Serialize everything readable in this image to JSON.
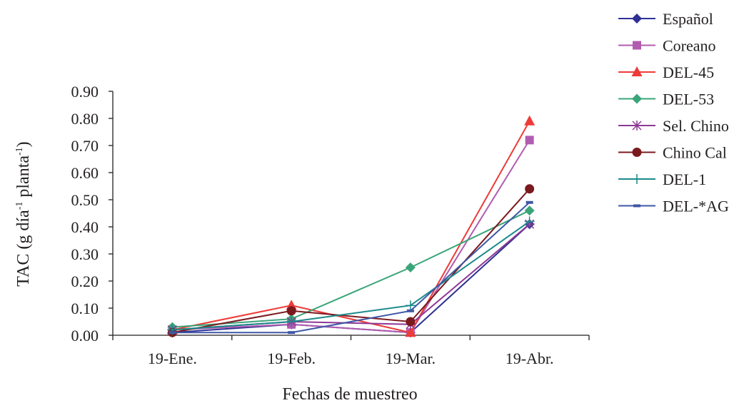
{
  "chart_data": {
    "type": "line",
    "xlabel": "Fechas de muestreo",
    "ylabel_main": "TAC (g día",
    "ylabel_sup1": "-1",
    "ylabel_mid": " planta",
    "ylabel_sup2": "-1",
    "ylabel_close": ")",
    "ylim": [
      0,
      0.9
    ],
    "ytick_labels": [
      "0.00",
      "0.10",
      "0.20",
      "0.30",
      "0.40",
      "0.50",
      "0.60",
      "0.70",
      "0.80",
      "0.90"
    ],
    "categories": [
      "19-Ene.",
      "19-Feb.",
      "19-Mar.",
      "19-Abr."
    ],
    "grid": false,
    "legend_position": "right",
    "series": [
      {
        "name": "Español",
        "color": "#2e3192",
        "marker": "diamond",
        "values": [
          0.01,
          0.04,
          0.01,
          0.41
        ]
      },
      {
        "name": "Coreano",
        "color": "#b15cb0",
        "marker": "square",
        "values": [
          0.02,
          0.04,
          0.01,
          0.72
        ]
      },
      {
        "name": "DEL-45",
        "color": "#ed3b38",
        "marker": "triangle",
        "values": [
          0.02,
          0.11,
          0.01,
          0.79
        ]
      },
      {
        "name": "DEL-53",
        "color": "#3aa579",
        "marker": "diamond",
        "values": [
          0.03,
          0.06,
          0.25,
          0.46
        ]
      },
      {
        "name": "Sel. Chino",
        "color": "#8e3996",
        "marker": "star",
        "values": [
          0.02,
          0.05,
          0.04,
          0.41
        ]
      },
      {
        "name": "Chino Cal",
        "color": "#7b1a1e",
        "marker": "circle",
        "values": [
          0.01,
          0.09,
          0.05,
          0.54
        ]
      },
      {
        "name": "DEL-1",
        "color": "#1b8a8a",
        "marker": "plus",
        "values": [
          0.02,
          0.05,
          0.11,
          0.42
        ]
      },
      {
        "name": "DEL-*AG",
        "color": "#3f57a6",
        "marker": "dash",
        "values": [
          0.01,
          0.01,
          0.09,
          0.49
        ]
      }
    ]
  }
}
